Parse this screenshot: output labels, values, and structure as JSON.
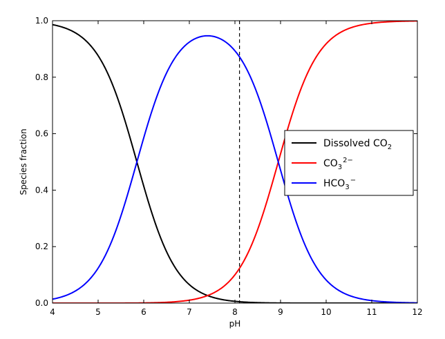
{
  "chart_data": {
    "type": "line",
    "xlabel": "pH",
    "ylabel": "Species fraction",
    "xlim": [
      4,
      12
    ],
    "ylim": [
      0,
      1
    ],
    "x_ticks": [
      "4",
      "5",
      "6",
      "7",
      "8",
      "9",
      "10",
      "11",
      "12"
    ],
    "y_ticks": [
      "0.0",
      "0.2",
      "0.4",
      "0.6",
      "0.8",
      "1.0"
    ],
    "grid": false,
    "legend_position": "center-right",
    "pKa1": 5.85,
    "pKa2": 8.95,
    "vline_x": 8.1,
    "vline_style": "dashed",
    "series": [
      {
        "name": "Dissolved CO",
        "subscript": "2",
        "superscript": "",
        "color": "#000000",
        "species": "h2co3"
      },
      {
        "name": "CO",
        "subscript": "3",
        "superscript": "2−",
        "color": "#ff0000",
        "species": "co3"
      },
      {
        "name": "HCO",
        "subscript": "3",
        "superscript": "−",
        "color": "#0000ff",
        "species": "hco3"
      }
    ]
  }
}
